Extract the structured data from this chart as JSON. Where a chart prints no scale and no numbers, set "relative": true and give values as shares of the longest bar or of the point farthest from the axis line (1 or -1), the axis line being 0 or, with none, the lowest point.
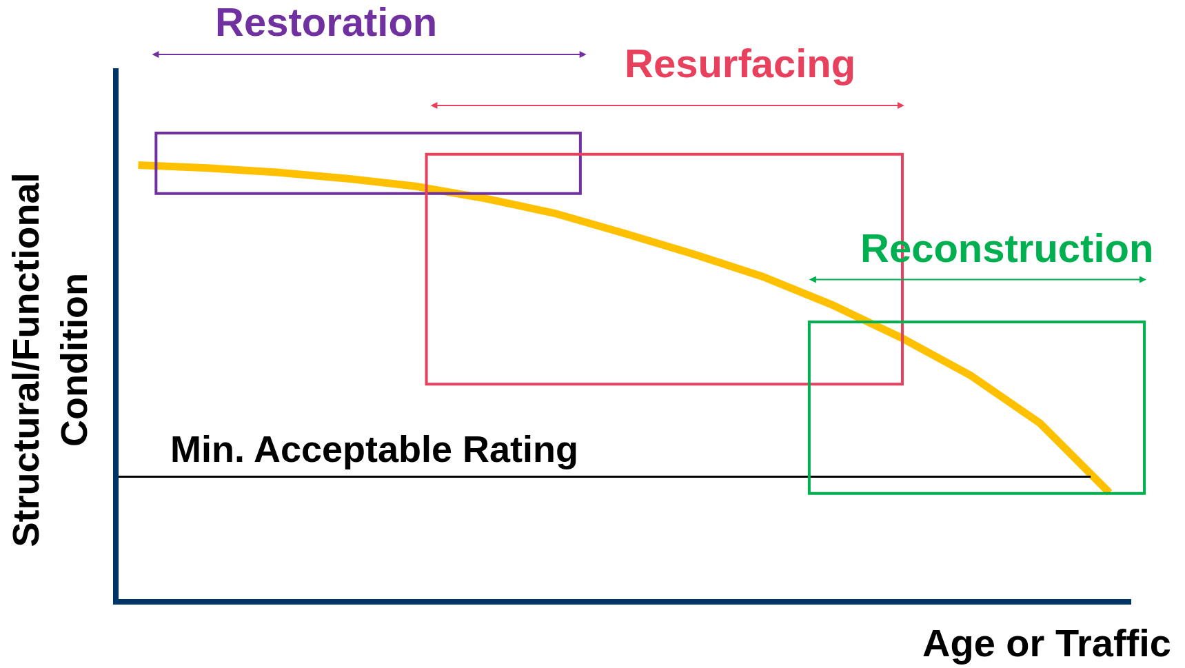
{
  "chart_data": {
    "type": "line",
    "relative": true,
    "xlabel": "Age or Traffic",
    "ylabel": "Structural/Functional\nCondition",
    "tick_labels": false,
    "categories": [
      null,
      null,
      null,
      null,
      null,
      null,
      null,
      null,
      null,
      null,
      null,
      null,
      null,
      null,
      null
    ],
    "series": [
      {
        "color": "#ffc000",
        "values": [
          1.0,
          0.993,
          0.983,
          0.969,
          0.951,
          0.923,
          0.889,
          0.843,
          0.795,
          0.743,
          0.678,
          0.602,
          0.515,
          0.405,
          0.245
        ]
      }
    ],
    "ref_lines": [
      {
        "axis": "y",
        "value": 0.282,
        "label": "Min. Acceptable Rating",
        "color": "#000000"
      }
    ],
    "annotations": [
      "Restoration",
      "Resurfacing",
      "Reconstruction"
    ]
  }
}
